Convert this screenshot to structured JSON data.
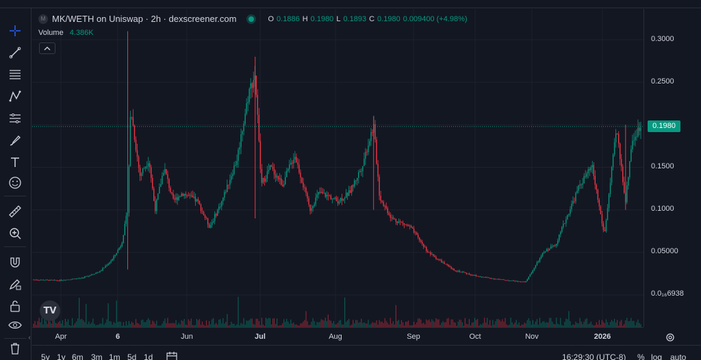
{
  "legend": {
    "coin_icon": "M",
    "title": "MK/WETH on Uniswap · 2h · dexscreener.com",
    "ohlc": [
      {
        "k": "O",
        "v": "0.1886"
      },
      {
        "k": "H",
        "v": "0.1980"
      },
      {
        "k": "L",
        "v": "0.1893"
      },
      {
        "k": "C",
        "v": "0.1980"
      }
    ],
    "change": "0.009400 (+4.98%)",
    "volume_label": "Volume",
    "volume_value": "4.386K",
    "collapse_icon": "chevron-up-icon"
  },
  "price_axis": {
    "ticks": [
      {
        "label": "0.3000",
        "value": 0.3
      },
      {
        "label": "0.2500",
        "value": 0.25
      },
      {
        "label": "0.1500",
        "value": 0.15
      },
      {
        "label": "0.1000",
        "value": 0.1
      },
      {
        "label": "0.05000",
        "value": 0.05
      },
      {
        "label": "0.0₁₆6938",
        "value": 0.0
      }
    ],
    "current_price": "0.1980"
  },
  "time_axis": [
    {
      "label": "Apr",
      "bold": false
    },
    {
      "label": "6",
      "bold": true
    },
    {
      "label": "Jun",
      "bold": false
    },
    {
      "label": "Jul",
      "bold": true
    },
    {
      "label": "Aug",
      "bold": false
    },
    {
      "label": "Sep",
      "bold": false
    },
    {
      "label": "Oct",
      "bold": false
    },
    {
      "label": "Nov",
      "bold": false
    },
    {
      "label": "2026",
      "bold": true
    }
  ],
  "bottom_bar": {
    "ranges": [
      "5y",
      "1y",
      "6m",
      "3m",
      "1m",
      "5d",
      "1d"
    ],
    "time": "16:29:30 (UTC-8)",
    "percent": "%",
    "log": "log",
    "auto": "auto"
  },
  "colors": {
    "up": "#089981",
    "down": "#f23645",
    "background": "#131722",
    "grid": "#1e222d"
  },
  "tools": [
    "crosshair-icon",
    "trend-line-icon",
    "fib-icon",
    "pattern-icon",
    "prediction-icon",
    "brush-icon",
    "text-icon",
    "emoji-icon",
    "ruler-icon",
    "zoom-icon",
    "magnet-icon",
    "lock-drawing-icon",
    "lock-icon",
    "eye-icon",
    "trash-icon"
  ],
  "chart_data": {
    "type": "line",
    "title": "MK/WETH on Uniswap · 2h · dexscreener.com",
    "x_labels": [
      "Apr",
      "6",
      "Jun",
      "Jul",
      "Aug",
      "Sep",
      "Oct",
      "Nov",
      "2026"
    ],
    "ylim": [
      0,
      0.32
    ],
    "series": [
      {
        "x": [
          0,
          0.04,
          0.08,
          0.11,
          0.13,
          0.145,
          0.155,
          0.16,
          0.175,
          0.19,
          0.2,
          0.215,
          0.23,
          0.245,
          0.27,
          0.29,
          0.31,
          0.335,
          0.355,
          0.365,
          0.375,
          0.39,
          0.41,
          0.43,
          0.44,
          0.455,
          0.47,
          0.49,
          0.5,
          0.52,
          0.54,
          0.56,
          0.57,
          0.59,
          0.62,
          0.65,
          0.69,
          0.73,
          0.77,
          0.81,
          0.84,
          0.86,
          0.88,
          0.9,
          0.92,
          0.94,
          0.96,
          0.975,
          0.985,
          1.0
        ],
        "values": [
          0.018,
          0.017,
          0.02,
          0.028,
          0.042,
          0.06,
          0.1,
          0.22,
          0.14,
          0.16,
          0.1,
          0.15,
          0.11,
          0.12,
          0.11,
          0.08,
          0.11,
          0.16,
          0.24,
          0.26,
          0.13,
          0.15,
          0.13,
          0.165,
          0.14,
          0.1,
          0.12,
          0.115,
          0.11,
          0.12,
          0.15,
          0.2,
          0.115,
          0.09,
          0.08,
          0.05,
          0.03,
          0.022,
          0.018,
          0.015,
          0.05,
          0.06,
          0.095,
          0.13,
          0.15,
          0.07,
          0.195,
          0.11,
          0.18,
          0.198
        ]
      }
    ]
  }
}
